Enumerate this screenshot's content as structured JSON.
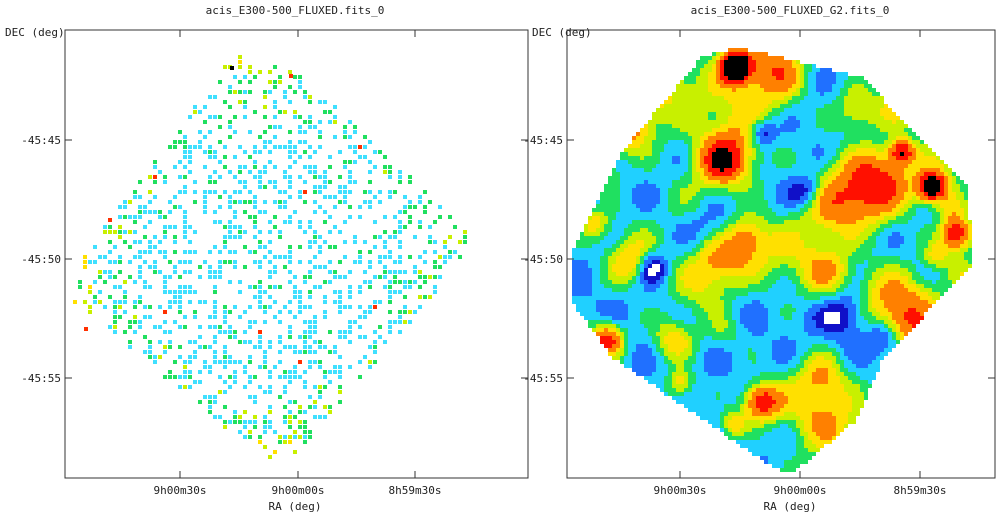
{
  "chart_data": [
    {
      "type": "heatmap",
      "title": "acis_E300-500_FLUXED.fits_0",
      "xlabel": "RA (deg)",
      "ylabel": "DEC (deg)",
      "x_ticks": [
        "9h00m30s",
        "9h00m00s",
        "8h59m30s"
      ],
      "y_ticks": [
        "-45:45",
        "-45:50",
        "-45:55"
      ],
      "style": "sparse-pixels",
      "colormap": [
        "#ffffff",
        "#40e0ff",
        "#20e060",
        "#c8f000",
        "#ffe000",
        "#ff3000",
        "#000000"
      ],
      "grid": false
    },
    {
      "type": "heatmap",
      "title": "acis_E300-500_FLUXED_G2.fits_0",
      "xlabel": "RA (deg)",
      "ylabel": "DEC (deg)",
      "x_ticks": [
        "9h00m30s",
        "9h00m00s",
        "8h59m30s"
      ],
      "y_ticks": [
        "-45:45",
        "-45:50",
        "-45:55"
      ],
      "style": "smoothed-gaussian",
      "colormap": [
        "#ffffff",
        "#1010c8",
        "#2070ff",
        "#20d0ff",
        "#20e060",
        "#c8f000",
        "#ffe000",
        "#ff8000",
        "#ff1000",
        "#000000"
      ],
      "grid": false
    }
  ]
}
